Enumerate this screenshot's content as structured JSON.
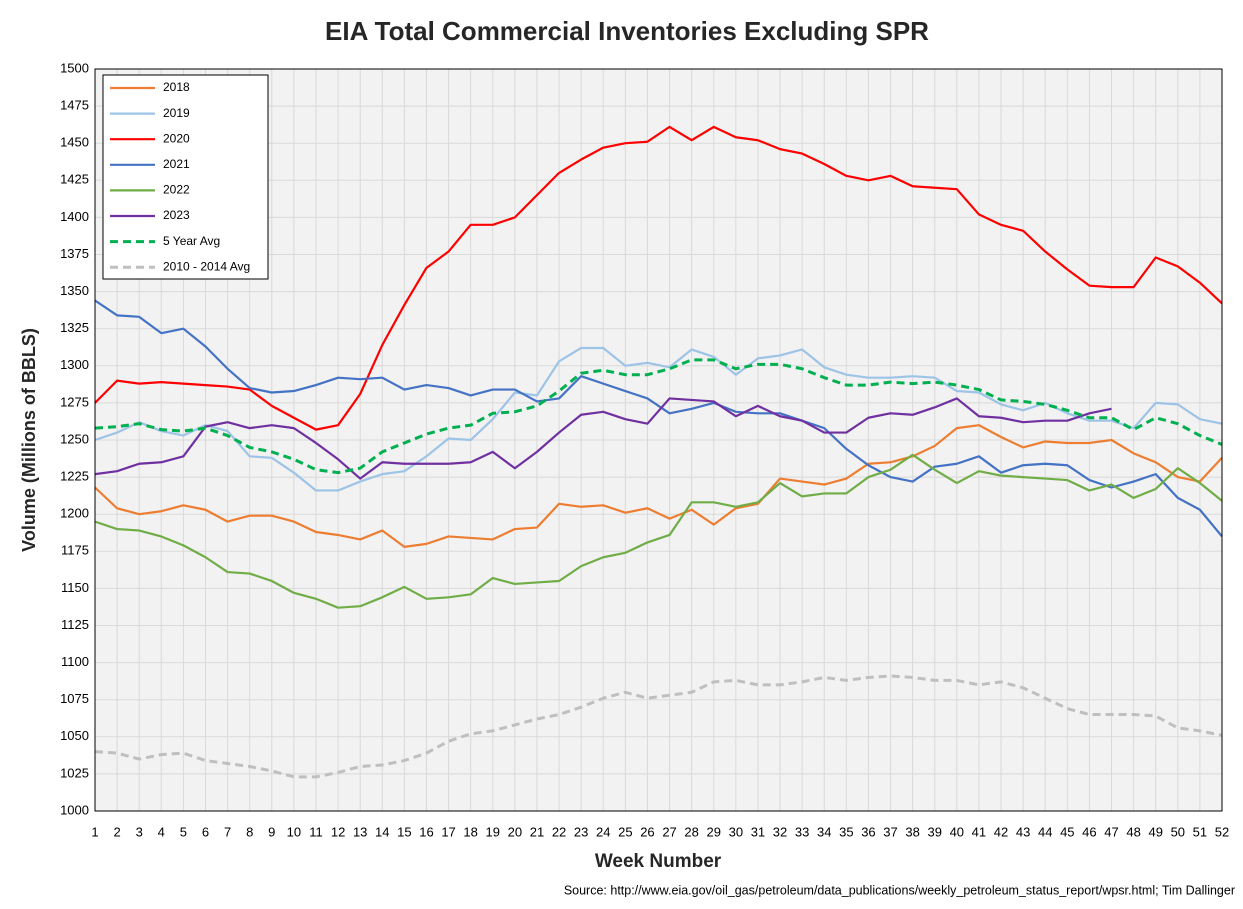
{
  "chart_data": {
    "type": "line",
    "title": "EIA Total Commercial Inventories Excluding SPR",
    "xlabel": "Week Number",
    "ylabel": "Volume (Millions of BBLS)",
    "source": "Source: http://www.eia.gov/oil_gas/petroleum/data_publications/weekly_petroleum_status_report/wpsr.html; Tim Dallinger",
    "x": [
      1,
      2,
      3,
      4,
      5,
      6,
      7,
      8,
      9,
      10,
      11,
      12,
      13,
      14,
      15,
      16,
      17,
      18,
      19,
      20,
      21,
      22,
      23,
      24,
      25,
      26,
      27,
      28,
      29,
      30,
      31,
      32,
      33,
      34,
      35,
      36,
      37,
      38,
      39,
      40,
      41,
      42,
      43,
      44,
      45,
      46,
      47,
      48,
      49,
      50,
      51,
      52
    ],
    "xlim": [
      1,
      52
    ],
    "xticks": [
      1,
      2,
      3,
      4,
      5,
      6,
      7,
      8,
      9,
      10,
      11,
      12,
      13,
      14,
      15,
      16,
      17,
      18,
      19,
      20,
      21,
      22,
      23,
      24,
      25,
      26,
      27,
      28,
      29,
      30,
      31,
      32,
      33,
      34,
      35,
      36,
      37,
      38,
      39,
      40,
      41,
      42,
      43,
      44,
      45,
      46,
      47,
      48,
      49,
      50,
      51,
      52
    ],
    "ylim": [
      1000,
      1500
    ],
    "yticks": [
      1000,
      1025,
      1050,
      1075,
      1100,
      1125,
      1150,
      1175,
      1200,
      1225,
      1250,
      1275,
      1300,
      1325,
      1350,
      1375,
      1400,
      1425,
      1450,
      1475,
      1500
    ],
    "grid": true,
    "legend": "upper left",
    "series": [
      {
        "name": "2018",
        "color": "#ed7d31",
        "style": "solid",
        "values": [
          1218,
          1204,
          1200,
          1202,
          1206,
          1203,
          1195,
          1199,
          1199,
          1195,
          1188,
          1186,
          1183,
          1189,
          1178,
          1180,
          1185,
          1184,
          1183,
          1190,
          1191,
          1207,
          1205,
          1206,
          1201,
          1204,
          1197,
          1203,
          1193,
          1204,
          1207,
          1224,
          1222,
          1220,
          1224,
          1234,
          1235,
          1239,
          1246,
          1258,
          1260,
          1252,
          1245,
          1249,
          1248,
          1248,
          1250,
          1241,
          1235,
          1225,
          1222,
          1238
        ]
      },
      {
        "name": "2019",
        "color": "#9dc3e6",
        "style": "solid",
        "values": [
          1250,
          1255,
          1262,
          1256,
          1253,
          1260,
          1256,
          1239,
          1238,
          1228,
          1216,
          1216,
          1222,
          1227,
          1229,
          1239,
          1251,
          1250,
          1264,
          1282,
          1280,
          1303,
          1312,
          1312,
          1300,
          1302,
          1299,
          1311,
          1306,
          1294,
          1305,
          1307,
          1311,
          1299,
          1294,
          1292,
          1292,
          1293,
          1292,
          1283,
          1282,
          1274,
          1270,
          1275,
          1268,
          1263,
          1263,
          1258,
          1275,
          1274,
          1264,
          1261
        ]
      },
      {
        "name": "2020",
        "color": "#ff0000",
        "style": "solid",
        "values": [
          1275,
          1290,
          1288,
          1289,
          1288,
          1287,
          1286,
          1284,
          1273,
          1265,
          1257,
          1260,
          1281,
          1314,
          1341,
          1366,
          1377,
          1395,
          1395,
          1400,
          1415,
          1430,
          1439,
          1447,
          1450,
          1451,
          1461,
          1452,
          1461,
          1454,
          1452,
          1446,
          1443,
          1436,
          1428,
          1425,
          1428,
          1421,
          1420,
          1419,
          1402,
          1395,
          1391,
          1377,
          1365,
          1354,
          1353,
          1353,
          1373,
          1367,
          1356,
          1342
        ]
      },
      {
        "name": "2021",
        "color": "#4472c4",
        "style": "solid",
        "values": [
          1344,
          1334,
          1333,
          1322,
          1325,
          1313,
          1298,
          1285,
          1282,
          1283,
          1287,
          1292,
          1291,
          1292,
          1284,
          1287,
          1285,
          1280,
          1284,
          1284,
          1276,
          1278,
          1293,
          1288,
          1283,
          1278,
          1268,
          1271,
          1275,
          1269,
          1268,
          1268,
          1263,
          1258,
          1244,
          1233,
          1225,
          1222,
          1232,
          1234,
          1239,
          1228,
          1233,
          1234,
          1233,
          1223,
          1218,
          1222,
          1227,
          1211,
          1203,
          1185
        ]
      },
      {
        "name": "2022",
        "color": "#70ad47",
        "style": "solid",
        "values": [
          1195,
          1190,
          1189,
          1185,
          1179,
          1171,
          1161,
          1160,
          1155,
          1147,
          1143,
          1137,
          1138,
          1144,
          1151,
          1143,
          1144,
          1146,
          1157,
          1153,
          1154,
          1155,
          1165,
          1171,
          1174,
          1181,
          1186,
          1208,
          1208,
          1205,
          1208,
          1221,
          1212,
          1214,
          1214,
          1225,
          1230,
          1240,
          1230,
          1221,
          1229,
          1226,
          1225,
          1224,
          1223,
          1216,
          1220,
          1211,
          1217,
          1231,
          1221,
          1209
        ]
      },
      {
        "name": "2023",
        "color": "#7030a0",
        "style": "solid",
        "values": [
          1227,
          1229,
          1234,
          1235,
          1239,
          1259,
          1262,
          1258,
          1260,
          1258,
          1248,
          1237,
          1224,
          1235,
          1234,
          1234,
          1234,
          1235,
          1242,
          1231,
          1242,
          1255,
          1267,
          1269,
          1264,
          1261,
          1278,
          1277,
          1276,
          1266,
          1273,
          1266,
          1263,
          1255,
          1255,
          1265,
          1268,
          1267,
          1272,
          1278,
          1266,
          1265,
          1262,
          1263,
          1263,
          1268,
          1271,
          null,
          null,
          null,
          null,
          null
        ]
      },
      {
        "name": "5 Year Avg",
        "color": "#00b050",
        "style": "dashed",
        "values": [
          1258,
          1259,
          1261,
          1257,
          1256,
          1258,
          1253,
          1245,
          1242,
          1237,
          1230,
          1228,
          1231,
          1242,
          1248,
          1254,
          1258,
          1260,
          1268,
          1269,
          1273,
          1283,
          1295,
          1297,
          1294,
          1294,
          1298,
          1304,
          1304,
          1298,
          1301,
          1301,
          1298,
          1292,
          1287,
          1287,
          1289,
          1288,
          1289,
          1287,
          1284,
          1277,
          1276,
          1274,
          1270,
          1265,
          1265,
          1257,
          1265,
          1261,
          1253,
          1247
        ]
      },
      {
        "name": "2010 - 2014 Avg",
        "color": "#bfbfbf",
        "style": "dashed",
        "values": [
          1040,
          1039,
          1035,
          1038,
          1039,
          1034,
          1032,
          1030,
          1027,
          1023,
          1023,
          1026,
          1030,
          1031,
          1034,
          1039,
          1047,
          1052,
          1054,
          1058,
          1062,
          1065,
          1070,
          1076,
          1080,
          1076,
          1078,
          1080,
          1087,
          1088,
          1085,
          1085,
          1087,
          1090,
          1088,
          1090,
          1091,
          1090,
          1088,
          1088,
          1085,
          1087,
          1083,
          1076,
          1069,
          1065,
          1065,
          1065,
          1064,
          1056,
          1054,
          1051
        ]
      }
    ]
  }
}
